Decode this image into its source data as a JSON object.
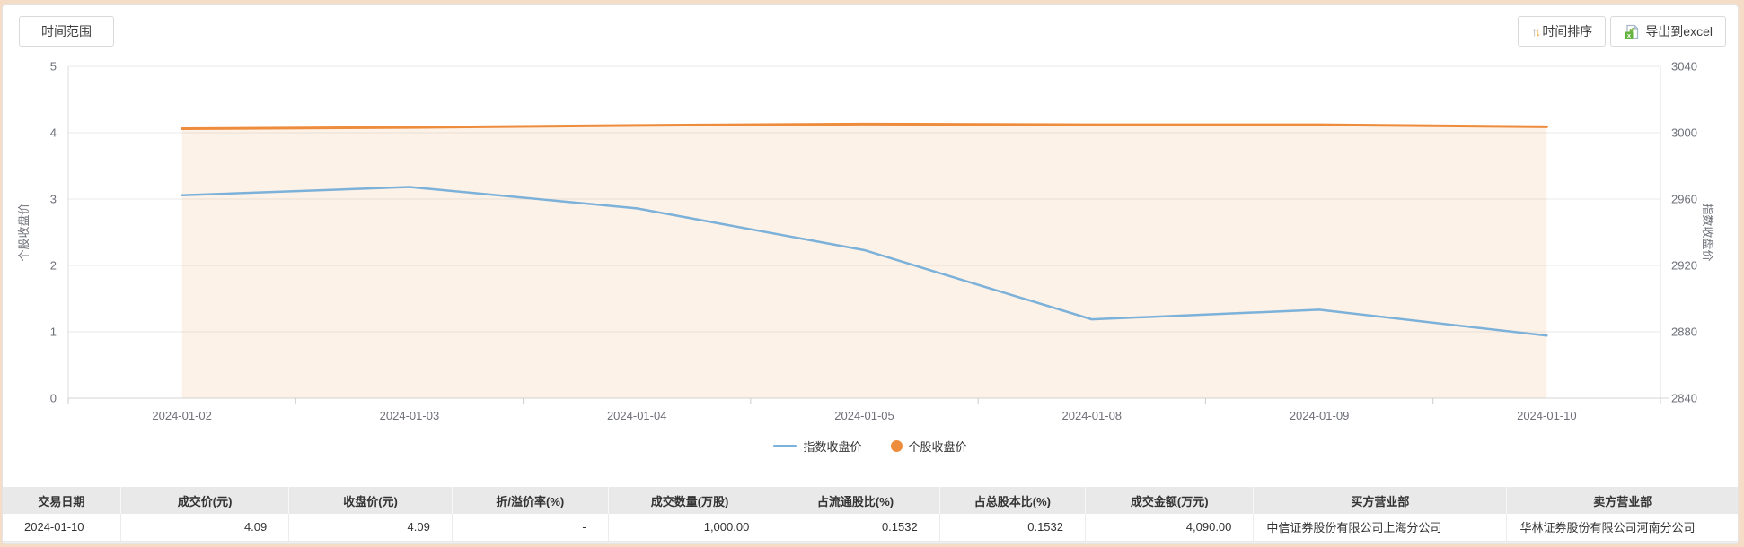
{
  "toolbar": {
    "time_range_label": "时间范围",
    "time_sort_label": "时间排序",
    "export_label": "导出到excel"
  },
  "chart_data": {
    "type": "line",
    "x": [
      "2024-01-02",
      "2024-01-03",
      "2024-01-04",
      "2024-01-05",
      "2024-01-08",
      "2024-01-09",
      "2024-01-10"
    ],
    "series": [
      {
        "name": "指数收盘价",
        "axis": "right",
        "color": "#7cb1d9",
        "marker": "line",
        "values": [
          2962.3,
          2967.3,
          2954.4,
          2929.2,
          2887.5,
          2893.3,
          2877.7
        ]
      },
      {
        "name": "个股收盘价",
        "axis": "left",
        "color": "#ee8c3d",
        "marker": "circle",
        "area": true,
        "area_color": "rgba(242,151,74,0.13)",
        "values": [
          4.06,
          4.08,
          4.11,
          4.13,
          4.12,
          4.12,
          4.09
        ]
      }
    ],
    "left_axis": {
      "name": "个股收盘价",
      "min": 0,
      "max": 5,
      "ticks": [
        0,
        1,
        2,
        3,
        4,
        5
      ]
    },
    "right_axis": {
      "name": "指数收盘价",
      "min": 2840,
      "max": 3040,
      "ticks": [
        2840,
        2880,
        2920,
        2960,
        3000,
        3040
      ]
    },
    "legend": [
      "指数收盘价",
      "个股收盘价"
    ],
    "legend_position": "bottom-center",
    "grid": true
  },
  "table": {
    "headers": [
      "交易日期",
      "成交价(元)",
      "收盘价(元)",
      "折/溢价率(%)",
      "成交数量(万股)",
      "占流通股比(%)",
      "占总股本比(%)",
      "成交金额(万元)",
      "买方营业部",
      "卖方营业部"
    ],
    "rows": [
      [
        "2024-01-10",
        "4.09",
        "4.09",
        "-",
        "1,000.00",
        "0.1532",
        "0.1532",
        "4,090.00",
        "中信证券股份有限公司上海分公司",
        "华林证券股份有限公司河南分公司"
      ]
    ]
  },
  "colors": {
    "index_line": "#7cb1d9",
    "stock_line": "#ee8c3d",
    "area_fill": "rgba(242,151,74,0.13)",
    "page_background": "#f5dcc6",
    "table_header_bg": "#e9e9e9",
    "grid_line": "#e9e9e9",
    "axis_text": "#6e7079",
    "excel_green": "#66b43f",
    "sort_arrow_orange": "#efa23b"
  }
}
